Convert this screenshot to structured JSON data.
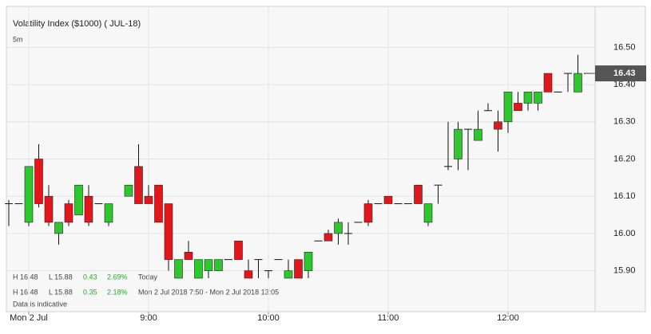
{
  "chart_data": {
    "type": "candlestick",
    "title": "Volatility Index ($1000) ( JUL-18)",
    "interval": "5m",
    "categories": [
      null,
      null,
      "Mon 2 Jul",
      null,
      null,
      null,
      null,
      null,
      null,
      null,
      null,
      null,
      null,
      null,
      "9:00",
      null,
      null,
      null,
      null,
      null,
      null,
      null,
      null,
      null,
      null,
      null,
      "10:00",
      null,
      null,
      null,
      null,
      null,
      null,
      null,
      null,
      null,
      null,
      null,
      "11:00",
      null,
      null,
      null,
      null,
      null,
      null,
      null,
      null,
      null,
      null,
      null,
      "12:00",
      null,
      null,
      null,
      null,
      null,
      null,
      null,
      null
    ],
    "open": [
      16.08,
      16.08,
      16.03,
      16.2,
      16.1,
      16.0,
      16.08,
      16.05,
      16.1,
      16.08,
      16.03,
      null,
      16.1,
      16.18,
      16.1,
      16.13,
      16.08,
      15.88,
      15.95,
      15.88,
      15.9,
      15.9,
      15.93,
      15.98,
      15.9,
      15.93,
      15.9,
      15.93,
      15.88,
      15.93,
      15.9,
      15.98,
      16.0,
      16.0,
      16.0,
      16.03,
      16.08,
      16.08,
      16.1,
      16.08,
      16.08,
      16.13,
      16.03,
      16.13,
      16.18,
      16.2,
      16.28,
      16.25,
      16.33,
      16.3,
      16.3,
      16.35,
      16.35,
      16.35,
      16.43,
      16.38,
      16.43,
      16.38,
      16.43
    ],
    "high": [
      16.09,
      16.08,
      16.18,
      16.24,
      16.13,
      16.03,
      16.09,
      16.13,
      16.13,
      16.08,
      16.08,
      null,
      16.13,
      16.24,
      16.13,
      16.13,
      16.08,
      15.93,
      15.98,
      15.93,
      15.93,
      15.93,
      15.93,
      15.98,
      15.93,
      15.93,
      15.9,
      15.93,
      15.93,
      15.93,
      15.95,
      15.98,
      16.01,
      16.04,
      16.03,
      16.03,
      16.09,
      16.08,
      16.1,
      16.08,
      16.08,
      16.13,
      16.08,
      16.13,
      16.3,
      16.3,
      16.28,
      16.33,
      16.35,
      16.33,
      16.38,
      16.38,
      16.38,
      16.38,
      16.43,
      16.38,
      16.43,
      16.48,
      16.43
    ],
    "low": [
      16.02,
      16.08,
      16.02,
      16.07,
      16.02,
      15.97,
      16.02,
      16.05,
      16.02,
      16.08,
      16.02,
      null,
      16.1,
      16.08,
      16.08,
      16.03,
      15.9,
      15.88,
      15.93,
      15.88,
      15.88,
      15.9,
      15.93,
      15.93,
      15.88,
      15.88,
      15.88,
      15.93,
      15.88,
      15.88,
      15.88,
      15.98,
      15.98,
      15.97,
      15.97,
      16.03,
      16.02,
      16.08,
      16.08,
      16.08,
      16.08,
      16.08,
      16.02,
      16.08,
      16.17,
      16.17,
      16.17,
      16.25,
      16.33,
      16.22,
      16.27,
      16.33,
      16.33,
      16.33,
      16.38,
      16.38,
      16.38,
      16.38,
      16.43
    ],
    "close": [
      16.08,
      16.08,
      16.18,
      16.08,
      16.03,
      16.03,
      16.03,
      16.13,
      16.03,
      16.08,
      16.08,
      null,
      16.13,
      16.08,
      16.08,
      16.03,
      15.93,
      15.93,
      15.93,
      15.93,
      15.93,
      15.93,
      15.93,
      15.93,
      15.88,
      15.93,
      15.9,
      15.93,
      15.9,
      15.88,
      15.95,
      15.98,
      15.98,
      16.03,
      16.0,
      16.03,
      16.03,
      16.08,
      16.08,
      16.08,
      16.08,
      16.08,
      16.08,
      16.13,
      16.18,
      16.28,
      16.28,
      16.28,
      16.33,
      16.28,
      16.38,
      16.33,
      16.38,
      16.38,
      16.38,
      16.38,
      16.43,
      16.43,
      16.43
    ],
    "up_color": "#2ec72e",
    "down_color": "#e3161c",
    "ylim": [
      15.79,
      16.61
    ],
    "yticks": [
      {
        "value": 15.9,
        "label": "15.90"
      },
      {
        "value": 16.0,
        "label": "16.00"
      },
      {
        "value": 16.1,
        "label": "16.10"
      },
      {
        "value": 16.2,
        "label": "16.20"
      },
      {
        "value": 16.3,
        "label": "16.30"
      },
      {
        "value": 16.4,
        "label": "16.40"
      },
      {
        "value": 16.5,
        "label": "16.50"
      }
    ],
    "last_price": 16.43,
    "grid": true,
    "stats": [
      {
        "high": "H 16.48",
        "low": "L 15.88",
        "change": "0.43",
        "percent": "2.69%",
        "period": "Today"
      },
      {
        "high": "H 16.48",
        "low": "L 15.88",
        "change": "0.35",
        "percent": "2.18%",
        "period": "Mon 2 Jul 2018 7:50 - Mon 2 Jul 2018 13:05"
      }
    ],
    "note": "Data is indicative"
  }
}
